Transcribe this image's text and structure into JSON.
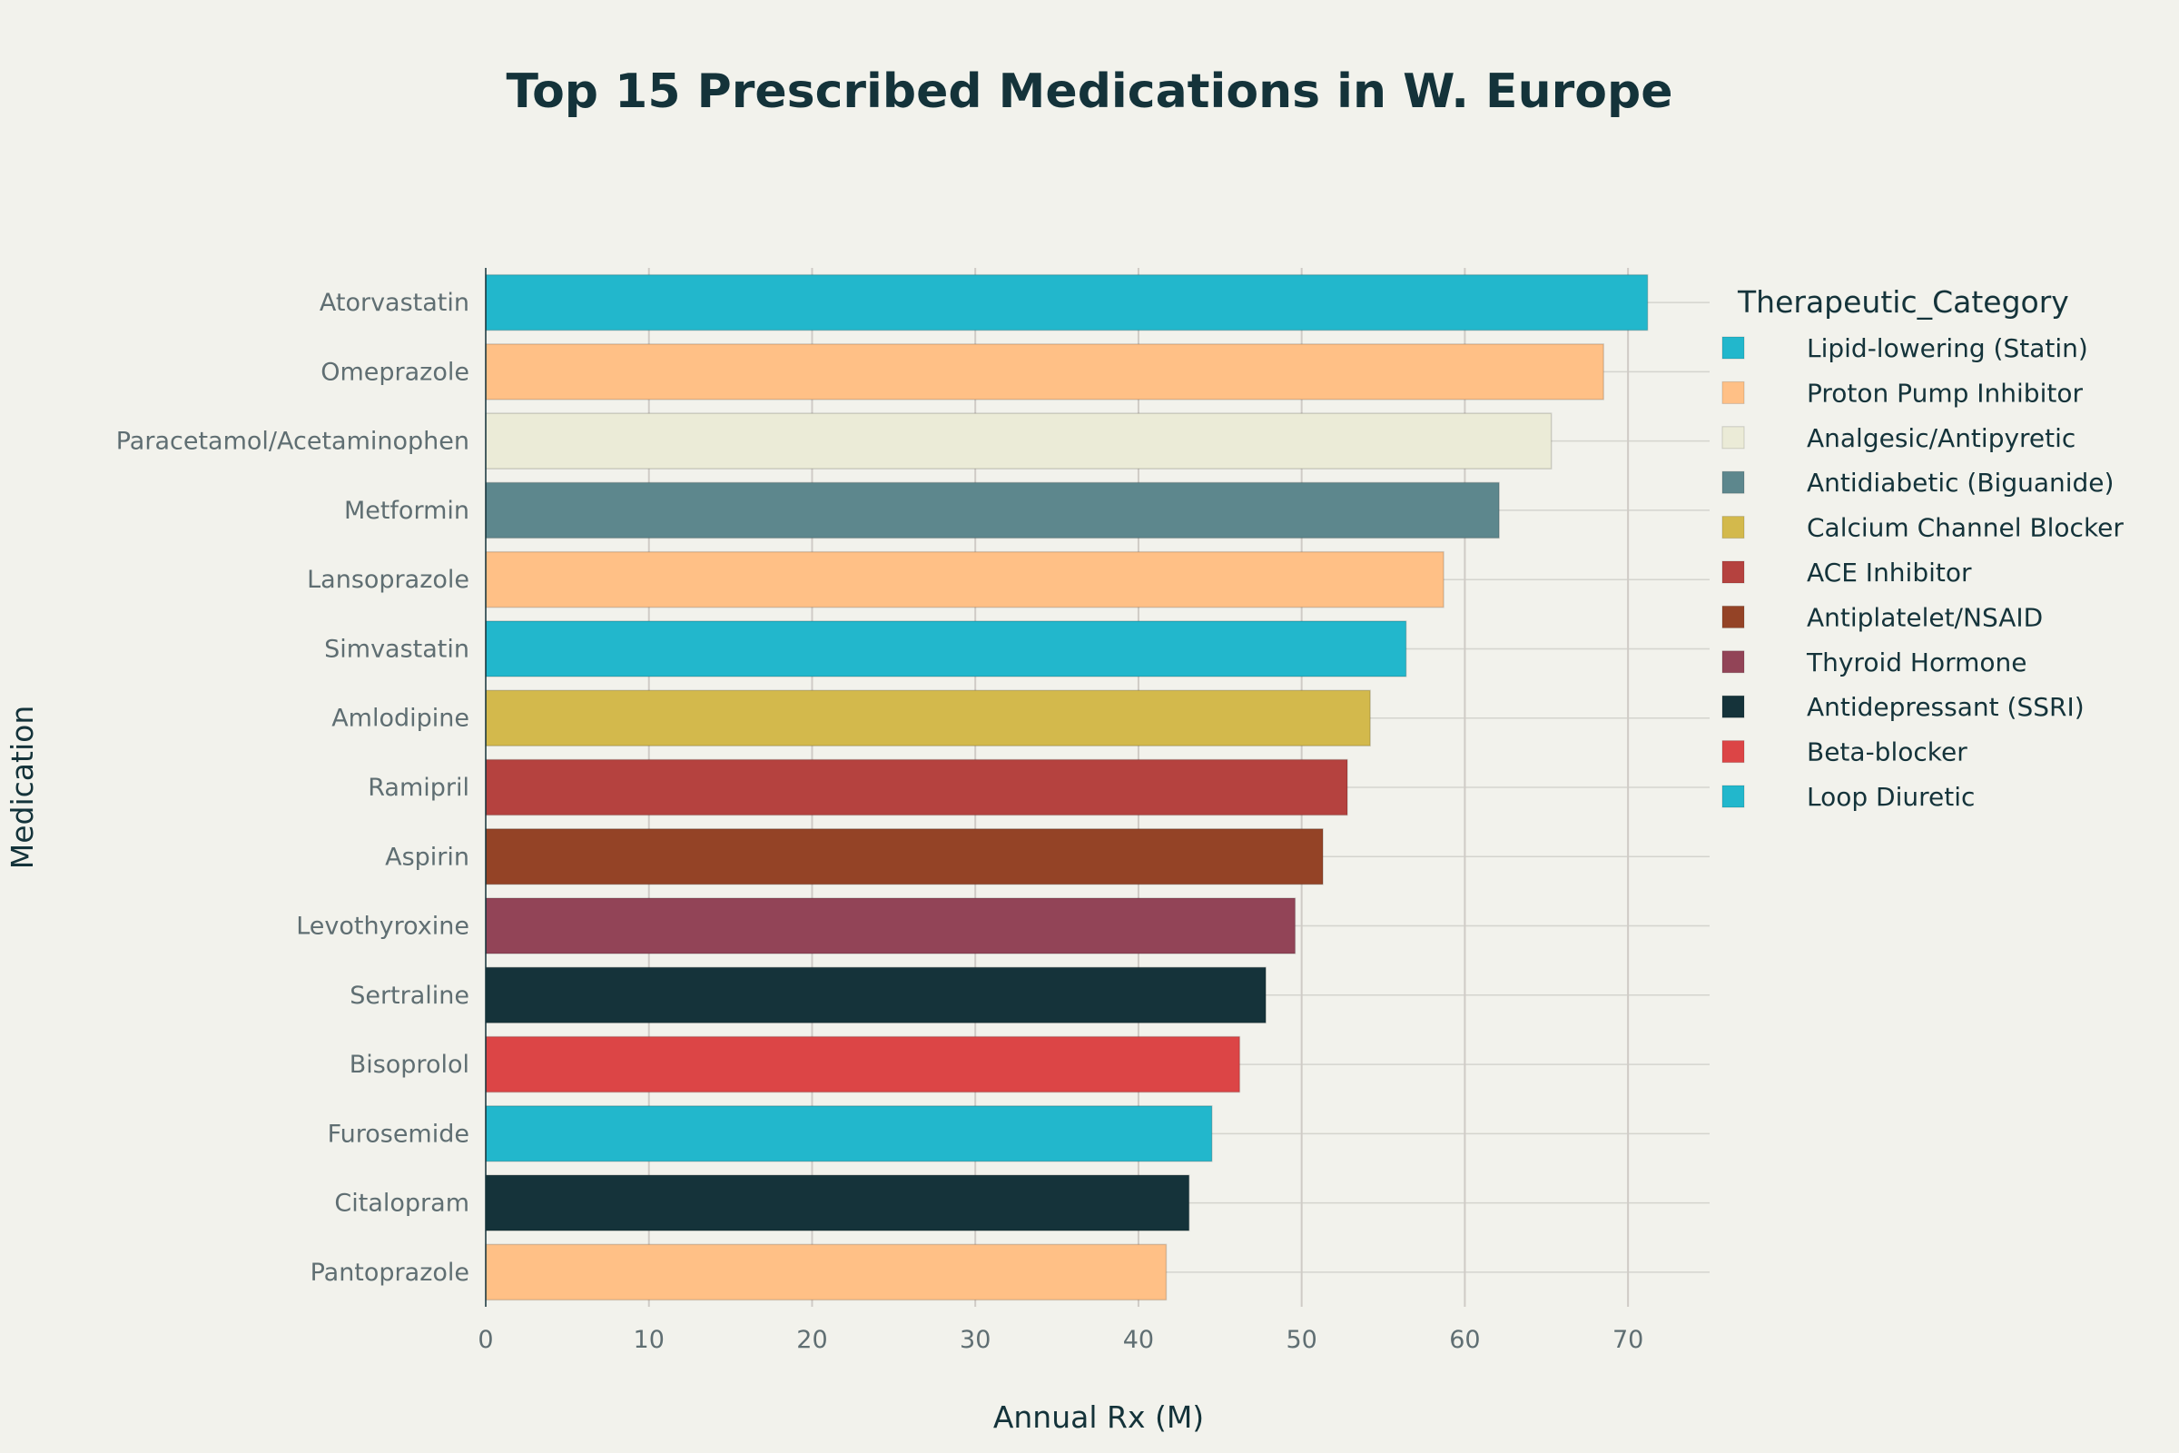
{
  "chart_data": {
    "type": "bar",
    "orientation": "horizontal",
    "title": "Top 15 Prescribed Medications in W. Europe",
    "xlabel": "Annual Rx (M)",
    "ylabel": "Medication",
    "xlim": [
      0,
      75
    ],
    "xticks": [
      0,
      10,
      20,
      30,
      40,
      50,
      60,
      70
    ],
    "grid": true,
    "legend": {
      "title": "Therapeutic_Category",
      "placement": "right",
      "entries": [
        {
          "name": "Lipid-lowering (Statin)",
          "color": "#22b7cc"
        },
        {
          "name": "Proton Pump Inhibitor",
          "color": "#ffc086"
        },
        {
          "name": "Analgesic/Antipyretic",
          "color": "#ebebd7"
        },
        {
          "name": "Antidiabetic (Biguanide)",
          "color": "#5d878d"
        },
        {
          "name": "Calcium Channel Blocker",
          "color": "#d3b94c"
        },
        {
          "name": "ACE Inhibitor",
          "color": "#b5423f"
        },
        {
          "name": "Antiplatelet/NSAID",
          "color": "#944326"
        },
        {
          "name": "Thyroid Hormone",
          "color": "#924457"
        },
        {
          "name": "Antidepressant (SSRI)",
          "color": "#15333a"
        },
        {
          "name": "Beta-blocker",
          "color": "#dc4546"
        },
        {
          "name": "Loop Diuretic",
          "color": "#22b7cc"
        }
      ]
    },
    "bars": [
      {
        "label": "Atorvastatin",
        "value": 71.2,
        "category": "Lipid-lowering (Statin)"
      },
      {
        "label": "Omeprazole",
        "value": 68.5,
        "category": "Proton Pump Inhibitor"
      },
      {
        "label": "Paracetamol/Acetaminophen",
        "value": 65.3,
        "category": "Analgesic/Antipyretic"
      },
      {
        "label": "Metformin",
        "value": 62.1,
        "category": "Antidiabetic (Biguanide)"
      },
      {
        "label": "Lansoprazole",
        "value": 58.7,
        "category": "Proton Pump Inhibitor"
      },
      {
        "label": "Simvastatin",
        "value": 56.4,
        "category": "Lipid-lowering (Statin)"
      },
      {
        "label": "Amlodipine",
        "value": 54.2,
        "category": "Calcium Channel Blocker"
      },
      {
        "label": "Ramipril",
        "value": 52.8,
        "category": "ACE Inhibitor"
      },
      {
        "label": "Aspirin",
        "value": 51.3,
        "category": "Antiplatelet/NSAID"
      },
      {
        "label": "Levothyroxine",
        "value": 49.6,
        "category": "Thyroid Hormone"
      },
      {
        "label": "Sertraline",
        "value": 47.8,
        "category": "Antidepressant (SSRI)"
      },
      {
        "label": "Bisoprolol",
        "value": 46.2,
        "category": "Beta-blocker"
      },
      {
        "label": "Furosemide",
        "value": 44.5,
        "category": "Loop Diuretic"
      },
      {
        "label": "Citalopram",
        "value": 43.1,
        "category": "Antidepressant (SSRI)"
      },
      {
        "label": "Pantoprazole",
        "value": 41.7,
        "category": "Proton Pump Inhibitor"
      }
    ]
  }
}
